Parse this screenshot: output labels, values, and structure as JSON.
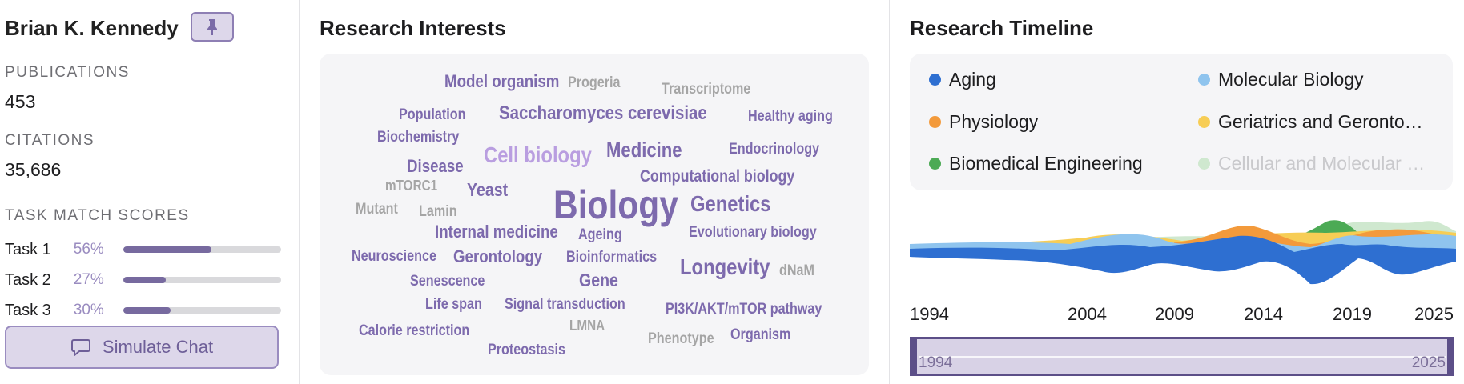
{
  "profile": {
    "name": "Brian K. Kennedy",
    "publications_label": "PUBLICATIONS",
    "publications": "453",
    "citations_label": "CITATIONS",
    "citations": "35,686",
    "task_label": "TASK MATCH SCORES",
    "tasks": [
      {
        "name": "Task 1",
        "pct": "56%",
        "value": 0.56
      },
      {
        "name": "Task 2",
        "pct": "27%",
        "value": 0.27
      },
      {
        "name": "Task 3",
        "pct": "30%",
        "value": 0.3
      }
    ],
    "chat_label": "Simulate Chat",
    "icons": {
      "pin": "pin-icon",
      "chat": "chat-bubble-icon"
    }
  },
  "interests": {
    "title": "Research Interests",
    "words": [
      "Model organism",
      "Progeria",
      "Transcriptome",
      "Population",
      "Saccharomyces cerevisiae",
      "Healthy aging",
      "Biochemistry",
      "Cell biology",
      "Medicine",
      "Endocrinology",
      "Disease",
      "Computational biology",
      "mTORC1",
      "Yeast",
      "Biology",
      "Genetics",
      "Mutant",
      "Lamin",
      "Internal medicine",
      "Ageing",
      "Evolutionary biology",
      "Neuroscience",
      "Gerontology",
      "Bioinformatics",
      "Longevity",
      "dNaM",
      "Senescence",
      "Gene",
      "Life span",
      "Signal transduction",
      "PI3K/AKT/mTOR pathway",
      "LMNA",
      "Calorie restriction",
      "Phenotype",
      "Organism",
      "Proteostasis"
    ]
  },
  "timeline": {
    "title": "Research Timeline",
    "legend": [
      {
        "label": "Aging",
        "color": "#2e6fd1"
      },
      {
        "label": "Molecular Biology",
        "color": "#8fc4ee"
      },
      {
        "label": "Physiology",
        "color": "#f39a3b"
      },
      {
        "label": "Geriatrics and Geronto…",
        "color": "#f7cd55"
      },
      {
        "label": "Biomedical Engineering",
        "color": "#4caa55"
      },
      {
        "label": "Cellular and Molecular …",
        "color": "#cfe8cf"
      }
    ],
    "ticks": [
      "1994",
      "2004",
      "2009",
      "2014",
      "2019",
      "2025"
    ],
    "brush_start": "1994",
    "brush_end": "2025"
  }
}
